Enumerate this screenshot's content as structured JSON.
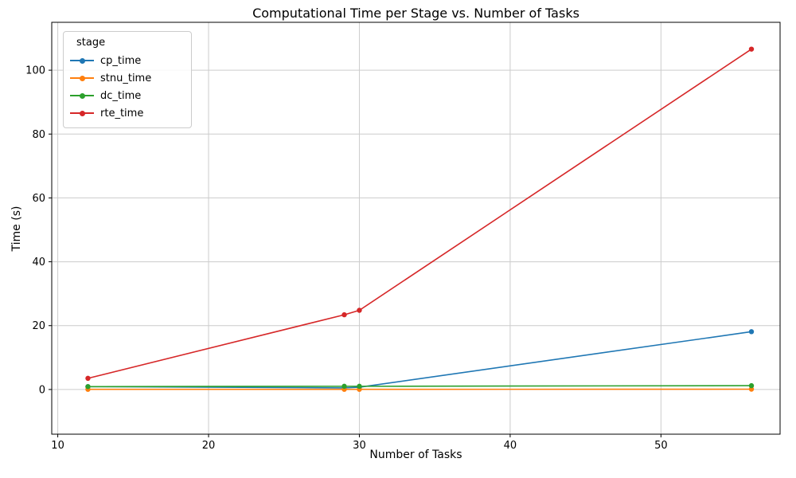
{
  "chart_data": {
    "type": "line",
    "title": "Computational Time per Stage vs. Number of Tasks",
    "xlabel": "Number of Tasks",
    "ylabel": "Time (s)",
    "legend_title": "stage",
    "legend_position": "upper left",
    "grid": true,
    "x": [
      12,
      29,
      30,
      56
    ],
    "series": [
      {
        "name": "cp_time",
        "color": "#1f77b4",
        "values": [
          0.9,
          0.5,
          0.7,
          18.1
        ]
      },
      {
        "name": "stnu_time",
        "color": "#ff7f0e",
        "values": [
          0.05,
          0.05,
          0.05,
          0.1
        ]
      },
      {
        "name": "dc_time",
        "color": "#2ca02c",
        "values": [
          0.9,
          1.0,
          1.0,
          1.2
        ]
      },
      {
        "name": "rte_time",
        "color": "#d62728",
        "values": [
          3.5,
          23.4,
          24.8,
          106.6
        ]
      }
    ],
    "xticks": [
      10,
      20,
      30,
      40,
      50
    ],
    "yticks": [
      0,
      20,
      40,
      60,
      80,
      100
    ],
    "xlim": [
      9.6,
      57.9
    ],
    "ylim": [
      -14,
      115
    ]
  }
}
